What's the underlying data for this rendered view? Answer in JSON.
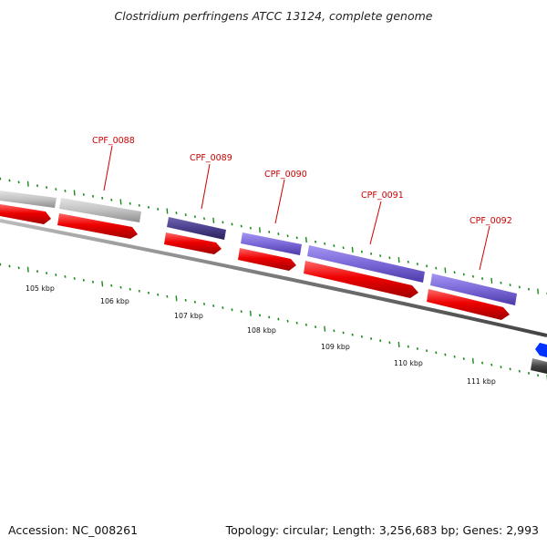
{
  "header": {
    "title": "Clostridium perfringens ATCC 13124, complete genome"
  },
  "footer": {
    "accession": "Accession: NC_008261",
    "summary": "Topology: circular; Length: 3,256,683 bp; Genes: 2,993"
  },
  "scale_labels": [
    "105 kbp",
    "106 kbp",
    "107 kbp",
    "108 kbp",
    "109 kbp",
    "110 kbp",
    "111 kbp"
  ],
  "genes": [
    {
      "id": "CPF_0088",
      "color": "#bdbdbd"
    },
    {
      "id": "CPF_0089",
      "color": "#4a3f8c"
    },
    {
      "id": "CPF_0090",
      "color": "#7b68d8"
    },
    {
      "id": "CPF_0091",
      "color": "#7b68d8"
    },
    {
      "id": "CPF_0092",
      "color": "#7b68d8"
    }
  ],
  "colors": {
    "forward_cds": "#ee0000",
    "backbone": "#777777",
    "tick": "#1a8a1a",
    "label": "#cc0000",
    "blue_feature": "#0033ff"
  }
}
